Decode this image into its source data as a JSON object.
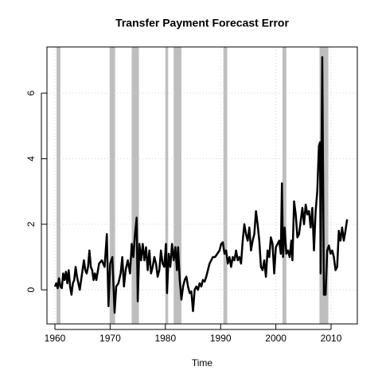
{
  "chart_data": {
    "type": "line",
    "title": "Transfer Payment Forecast Error",
    "x_label": "Time",
    "xlim": [
      1958.56,
      2014.75
    ],
    "ylim": [
      -1.04,
      7.41
    ],
    "xticks": [
      1960,
      1970,
      1980,
      1990,
      2000,
      2010
    ],
    "yticks": [
      0,
      2,
      4,
      6
    ],
    "grid": true,
    "recessions": [
      [
        1960.3,
        1961.0
      ],
      [
        1969.9,
        1970.9
      ],
      [
        1973.9,
        1975.2
      ],
      [
        1980.0,
        1980.5
      ],
      [
        1981.5,
        1982.9
      ],
      [
        1990.5,
        1991.2
      ],
      [
        2001.2,
        2001.9
      ],
      [
        2007.9,
        2009.5
      ]
    ],
    "recession_color": "#bebebe",
    "series": [
      {
        "color": "#000000",
        "x": [
          1960.0,
          1960.25,
          1960.5,
          1960.75,
          1961.0,
          1961.25,
          1961.5,
          1961.75,
          1962.0,
          1962.25,
          1962.5,
          1962.75,
          1963.0,
          1963.25,
          1963.5,
          1963.75,
          1964.0,
          1964.25,
          1964.5,
          1964.75,
          1965.0,
          1965.25,
          1965.5,
          1965.75,
          1966.0,
          1966.25,
          1966.5,
          1966.75,
          1967.0,
          1967.25,
          1967.5,
          1968.0,
          1968.5,
          1969.0,
          1969.4,
          1969.7,
          1970.0,
          1970.4,
          1970.8,
          1971.1,
          1971.5,
          1971.9,
          1972.2,
          1972.5,
          1972.8,
          1973.2,
          1973.6,
          1973.9,
          1974.2,
          1974.5,
          1974.8,
          1975.0,
          1975.3,
          1975.6,
          1975.9,
          1976.2,
          1976.5,
          1976.8,
          1977.1,
          1977.4,
          1977.7,
          1978.0,
          1978.3,
          1978.6,
          1978.9,
          1979.2,
          1979.5,
          1979.8,
          1980.1,
          1980.3,
          1980.6,
          1980.9,
          1981.2,
          1981.5,
          1981.8,
          1982.1,
          1982.3,
          1982.6,
          1982.9,
          1983.2,
          1983.5,
          1983.8,
          1984.1,
          1984.4,
          1984.7,
          1985.0,
          1985.3,
          1985.6,
          1985.9,
          1986.2,
          1986.5,
          1986.8,
          1987.1,
          1987.4,
          1987.7,
          1988.0,
          1988.3,
          1988.6,
          1989.0,
          1989.4,
          1989.8,
          1990.1,
          1990.4,
          1990.7,
          1991.0,
          1991.3,
          1991.6,
          1991.9,
          1992.2,
          1992.5,
          1992.8,
          1993.1,
          1993.4,
          1993.7,
          1994.0,
          1994.3,
          1994.6,
          1994.9,
          1995.2,
          1995.5,
          1995.8,
          1996.1,
          1996.4,
          1996.7,
          1997.0,
          1997.3,
          1997.6,
          1997.9,
          1998.2,
          1998.5,
          1998.8,
          1999.1,
          1999.4,
          1999.7,
          2000.0,
          2000.3,
          2000.6,
          2000.9,
          2001.1,
          2001.3,
          2001.6,
          2001.9,
          2002.2,
          2002.5,
          2002.8,
          2003.0,
          2003.3,
          2003.6,
          2003.9,
          2004.2,
          2004.5,
          2004.8,
          2005.1,
          2005.4,
          2005.7,
          2006.0,
          2006.3,
          2006.6,
          2006.9,
          2007.2,
          2007.5,
          2007.8,
          2008.0,
          2008.1,
          2008.4,
          2008.7,
          2009.0,
          2009.3,
          2009.6,
          2009.9,
          2010.2,
          2010.5,
          2010.8,
          2011.1,
          2011.4,
          2011.7,
          2012.0,
          2012.3,
          2012.6,
          2012.9
        ],
        "values": [
          0.1,
          0.2,
          0.05,
          0.35,
          0.1,
          0.05,
          0.5,
          0.3,
          0.55,
          0.2,
          0.6,
          0.1,
          -0.15,
          0.2,
          0.3,
          0.7,
          0.4,
          0.2,
          0.0,
          0.3,
          0.6,
          0.9,
          0.6,
          0.5,
          0.7,
          1.2,
          0.7,
          0.6,
          0.3,
          0.5,
          0.3,
          0.8,
          0.9,
          0.7,
          1.7,
          -0.5,
          0.8,
          1.0,
          -0.7,
          0.1,
          0.2,
          0.5,
          1.0,
          0.1,
          0.6,
          0.9,
          0.5,
          1.4,
          1.0,
          1.7,
          2.2,
          -0.35,
          1.4,
          0.9,
          1.4,
          0.9,
          1.3,
          0.6,
          1.2,
          0.5,
          0.7,
          1.0,
          0.8,
          0.4,
          0.6,
          1.2,
          0.8,
          0.7,
          1.4,
          -0.1,
          1.1,
          0.7,
          1.4,
          0.9,
          1.3,
          0.6,
          1.3,
          0.3,
          -0.3,
          0.1,
          0.3,
          0.4,
          0.1,
          -0.1,
          -0.05,
          -0.65,
          0.0,
          0.1,
          0.0,
          0.2,
          0.1,
          0.3,
          0.25,
          0.4,
          0.6,
          0.8,
          0.9,
          1.0,
          1.0,
          1.1,
          1.2,
          1.4,
          1.45,
          1.1,
          1.2,
          0.8,
          1.0,
          0.7,
          1.0,
          0.9,
          1.2,
          0.9,
          1.0,
          0.8,
          1.5,
          2.0,
          1.7,
          1.5,
          1.9,
          1.2,
          1.5,
          1.7,
          2.4,
          2.0,
          1.5,
          0.7,
          0.6,
          0.9,
          0.4,
          1.2,
          1.0,
          1.6,
          1.4,
          0.5,
          1.3,
          1.4,
          1.5,
          1.1,
          3.25,
          1.0,
          1.9,
          1.1,
          1.2,
          1.0,
          1.5,
          0.9,
          2.7,
          2.3,
          1.6,
          1.7,
          2.1,
          2.5,
          2.0,
          2.6,
          2.3,
          2.4,
          1.9,
          2.5,
          1.2,
          2.4,
          3.0,
          4.4,
          4.5,
          0.5,
          7.1,
          -0.15,
          -0.15,
          1.2,
          1.35,
          1.1,
          1.2,
          1.0,
          0.6,
          0.7,
          1.8,
          1.5,
          1.9,
          1.5,
          1.8,
          2.15
        ]
      }
    ]
  }
}
